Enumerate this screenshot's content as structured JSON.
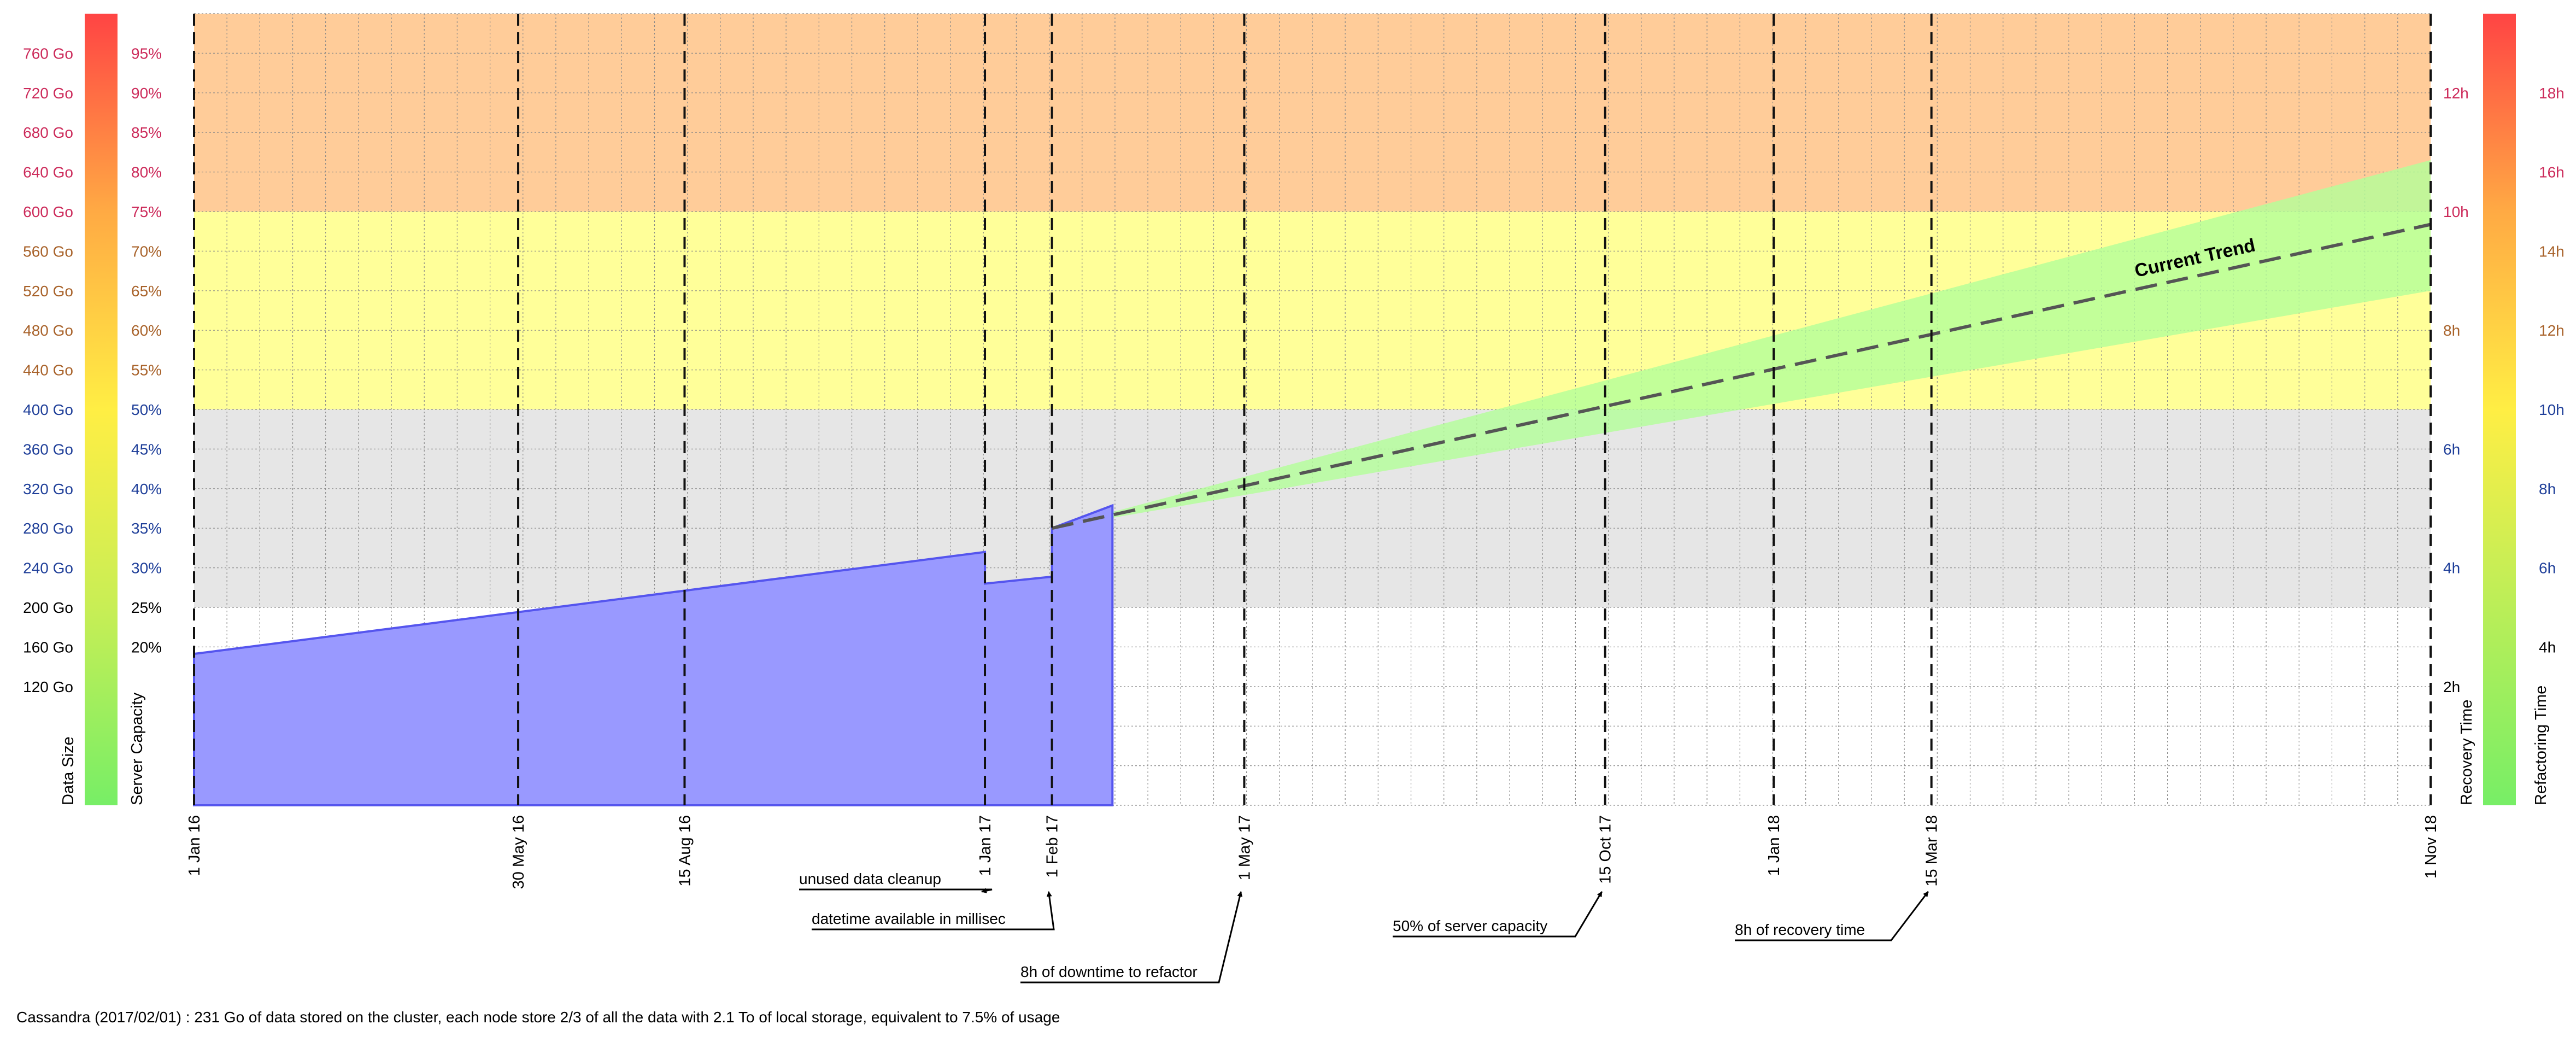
{
  "caption": "Cassandra (2017/02/01) : 231 Go of data stored on the cluster, each node store 2/3 of all the data with 2.1 To of local storage, equivalent to 7.5% of usage",
  "colors": {
    "zone_danger": "#ffcc99",
    "zone_warning": "#ffff99",
    "zone_caution": "#e6e6e6",
    "zone_ok": "#ffffff",
    "data_fill": "#9999ff",
    "data_stroke": "#5555ee",
    "trend_band": "#b3ff99",
    "trend_line": "#555555",
    "label_green": "#000000",
    "label_blue": "#1f3f99",
    "label_orange": "#a8622a",
    "label_red": "#cc2a5a"
  },
  "chart_data": {
    "type": "area",
    "title": "",
    "x_range": [
      "2016-01-01",
      "2018-11-01"
    ],
    "y_range_go": [
      0,
      800
    ],
    "grid": true,
    "x_axis": {
      "ticks": [
        {
          "date": "2016-01-01",
          "label": "1 Jan 16"
        },
        {
          "date": "2016-05-30",
          "label": "30 May 16"
        },
        {
          "date": "2016-08-15",
          "label": "15 Aug 16"
        },
        {
          "date": "2017-01-01",
          "label": "1 Jan 17"
        },
        {
          "date": "2017-02-01",
          "label": "1 Feb 17"
        },
        {
          "date": "2017-05-01",
          "label": "1 May 17"
        },
        {
          "date": "2017-10-15",
          "label": "15 Oct 17"
        },
        {
          "date": "2018-01-01",
          "label": "1 Jan 18"
        },
        {
          "date": "2018-03-15",
          "label": "15 Mar 18"
        },
        {
          "date": "2018-11-01",
          "label": "1 Nov 18"
        }
      ]
    },
    "zones": [
      {
        "name": "danger",
        "from": 600,
        "to": 800
      },
      {
        "name": "warning",
        "from": 400,
        "to": 600
      },
      {
        "name": "caution",
        "from": 200,
        "to": 400
      },
      {
        "name": "ok",
        "from": 0,
        "to": 200
      }
    ],
    "left_axes": [
      {
        "title": "Data Size",
        "ticks": [
          {
            "value": 760,
            "label": "760 Go"
          },
          {
            "value": 720,
            "label": "720 Go"
          },
          {
            "value": 680,
            "label": "680 Go"
          },
          {
            "value": 640,
            "label": "640 Go"
          },
          {
            "value": 600,
            "label": "600 Go"
          },
          {
            "value": 560,
            "label": "560 Go"
          },
          {
            "value": 520,
            "label": "520 Go"
          },
          {
            "value": 480,
            "label": "480 Go"
          },
          {
            "value": 440,
            "label": "440 Go"
          },
          {
            "value": 400,
            "label": "400 Go"
          },
          {
            "value": 360,
            "label": "360 Go"
          },
          {
            "value": 320,
            "label": "320 Go"
          },
          {
            "value": 280,
            "label": "280 Go"
          },
          {
            "value": 240,
            "label": "240 Go"
          },
          {
            "value": 200,
            "label": "200 Go"
          },
          {
            "value": 160,
            "label": "160 Go"
          },
          {
            "value": 120,
            "label": "120 Go"
          }
        ]
      },
      {
        "title": "Server Capacity",
        "ticks": [
          {
            "value": 760,
            "label": "95%"
          },
          {
            "value": 720,
            "label": "90%"
          },
          {
            "value": 680,
            "label": "85%"
          },
          {
            "value": 640,
            "label": "80%"
          },
          {
            "value": 600,
            "label": "75%"
          },
          {
            "value": 560,
            "label": "70%"
          },
          {
            "value": 520,
            "label": "65%"
          },
          {
            "value": 480,
            "label": "60%"
          },
          {
            "value": 440,
            "label": "55%"
          },
          {
            "value": 400,
            "label": "50%"
          },
          {
            "value": 360,
            "label": "45%"
          },
          {
            "value": 320,
            "label": "40%"
          },
          {
            "value": 280,
            "label": "35%"
          },
          {
            "value": 240,
            "label": "30%"
          },
          {
            "value": 200,
            "label": "25%"
          },
          {
            "value": 160,
            "label": "20%"
          }
        ]
      }
    ],
    "right_axes": [
      {
        "title": "Recovery Time",
        "ticks": [
          {
            "value": 720,
            "label": "12h"
          },
          {
            "value": 600,
            "label": "10h"
          },
          {
            "value": 480,
            "label": "8h"
          },
          {
            "value": 360,
            "label": "6h"
          },
          {
            "value": 240,
            "label": "4h"
          },
          {
            "value": 120,
            "label": "2h"
          }
        ]
      },
      {
        "title": "Refactoring Time",
        "ticks": [
          {
            "value": 720,
            "label": "18h"
          },
          {
            "value": 640,
            "label": "16h"
          },
          {
            "value": 560,
            "label": "14h"
          },
          {
            "value": 480,
            "label": "12h"
          },
          {
            "value": 400,
            "label": "10h"
          },
          {
            "value": 320,
            "label": "8h"
          },
          {
            "value": 240,
            "label": "6h"
          },
          {
            "value": 160,
            "label": "4h"
          }
        ]
      }
    ],
    "series": [
      {
        "name": "",
        "type": "area",
        "points": [
          {
            "date": "2016-01-01",
            "value": 153
          },
          {
            "date": "2017-01-01",
            "value": 256
          },
          {
            "date": "2017-01-01",
            "value": 224
          },
          {
            "date": "2017-02-01",
            "value": 231
          },
          {
            "date": "2017-02-01",
            "value": 280
          },
          {
            "date": "2017-03-01",
            "value": 303
          }
        ]
      },
      {
        "name": "Current Trend",
        "type": "trend",
        "start": {
          "date": "2017-02-01",
          "value": 280
        },
        "end": {
          "date": "2018-11-01",
          "value": 587
        },
        "band_end_upper": 652,
        "band_end_lower": 520
      }
    ],
    "annotations": [
      {
        "text": "unused data cleanup",
        "date": "2017-01-01"
      },
      {
        "text": "datetime available in millisec",
        "date": "2017-02-01"
      },
      {
        "text": "8h of downtime to refactor",
        "date": "2017-05-01"
      },
      {
        "text": "50% of server capacity",
        "date": "2017-10-15"
      },
      {
        "text": "8h of recovery time",
        "date": "2018-03-15"
      }
    ]
  }
}
